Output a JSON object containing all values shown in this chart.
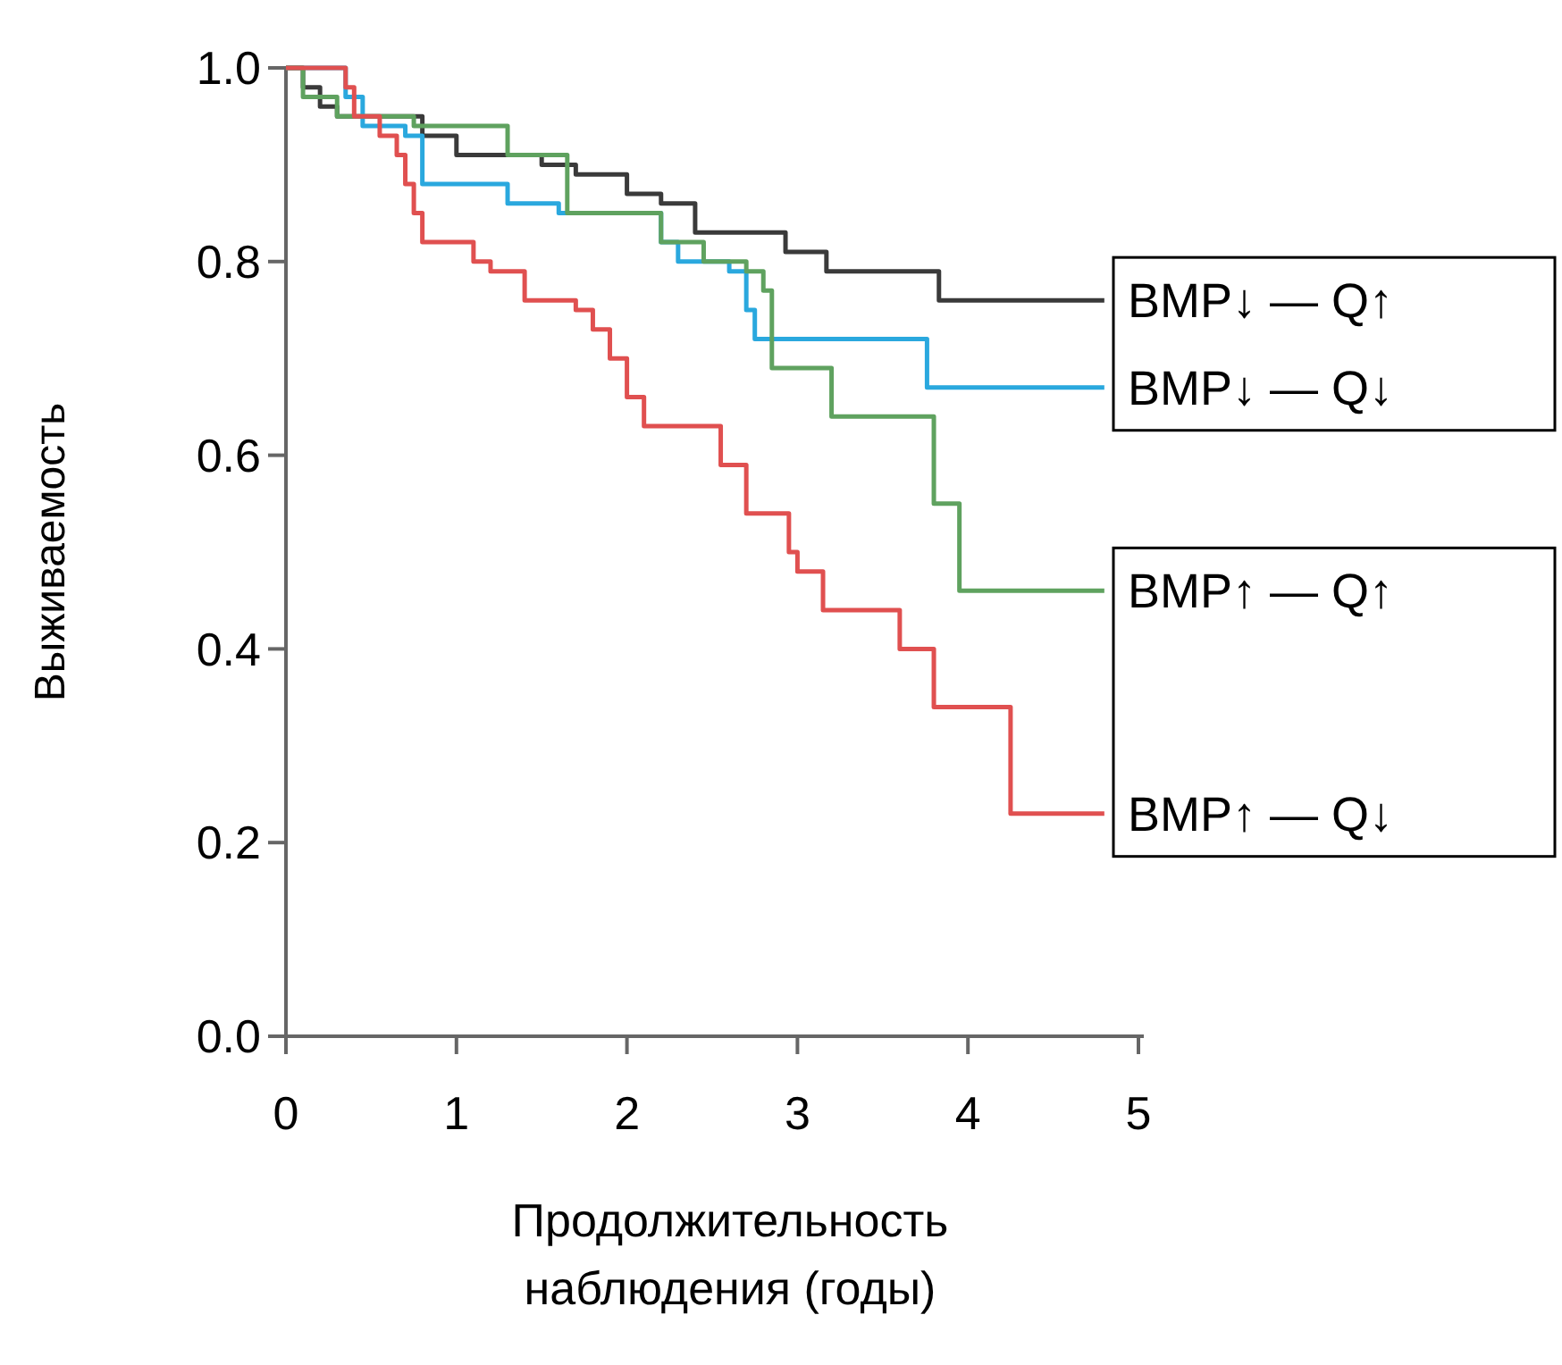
{
  "chart_data": {
    "type": "step",
    "xlabel": "Продолжительность наблюдения (годы)",
    "ylabel": "Выживаемость",
    "xlim": [
      0,
      5
    ],
    "ylim": [
      0,
      1
    ],
    "xticks": [
      0,
      1,
      2,
      3,
      4,
      5
    ],
    "yticks": [
      {
        "value": 0,
        "label": "0.0"
      },
      0.2,
      0.4,
      0.6,
      0.8,
      {
        "value": 1,
        "label": "1.0"
      }
    ],
    "grid": false,
    "legend": "right",
    "line_style": "solid",
    "series": [
      {
        "name": "BMP↓ — Q↑",
        "color": "#3a3a3a",
        "x": [
          0,
          0.1,
          0.2,
          0.3,
          0.8,
          1.0,
          1.5,
          1.7,
          2.0,
          2.2,
          2.4,
          2.93,
          3.17,
          3.83,
          4.8
        ],
        "values": [
          1.0,
          0.98,
          0.96,
          0.95,
          0.93,
          0.91,
          0.9,
          0.89,
          0.87,
          0.86,
          0.83,
          0.81,
          0.79,
          0.76,
          0.76
        ]
      },
      {
        "name": "BMP↓ — Q↓",
        "color": "#2aa8de",
        "x": [
          0,
          0.35,
          0.45,
          0.7,
          0.8,
          1.3,
          1.6,
          2.2,
          2.3,
          2.6,
          2.7,
          2.75,
          3.76,
          4.8
        ],
        "values": [
          1.0,
          0.97,
          0.94,
          0.93,
          0.88,
          0.86,
          0.85,
          0.82,
          0.8,
          0.79,
          0.75,
          0.72,
          0.67,
          0.67
        ]
      },
      {
        "name": "BMP↑ — Q↑",
        "color": "#5fa25f",
        "x": [
          0,
          0.1,
          0.3,
          0.75,
          1.3,
          1.65,
          2.2,
          2.45,
          2.7,
          2.8,
          2.85,
          3.2,
          3.8,
          3.85,
          3.95,
          4.8
        ],
        "values": [
          1.0,
          0.97,
          0.95,
          0.94,
          0.91,
          0.85,
          0.82,
          0.8,
          0.79,
          0.77,
          0.69,
          0.64,
          0.55,
          0.55,
          0.46,
          0.46
        ]
      },
      {
        "name": "BMP↑ — Q↓",
        "color": "#e05050",
        "x": [
          0,
          0.35,
          0.4,
          0.55,
          0.65,
          0.7,
          0.75,
          0.8,
          1.1,
          1.2,
          1.4,
          1.7,
          1.8,
          1.9,
          2.0,
          2.1,
          2.55,
          2.7,
          2.95,
          3.0,
          3.15,
          3.6,
          3.8,
          4.25,
          4.8
        ],
        "values": [
          1.0,
          0.98,
          0.95,
          0.93,
          0.91,
          0.88,
          0.85,
          0.82,
          0.8,
          0.79,
          0.76,
          0.75,
          0.73,
          0.7,
          0.66,
          0.63,
          0.59,
          0.54,
          0.5,
          0.48,
          0.44,
          0.4,
          0.34,
          0.23,
          0.23
        ]
      }
    ]
  }
}
